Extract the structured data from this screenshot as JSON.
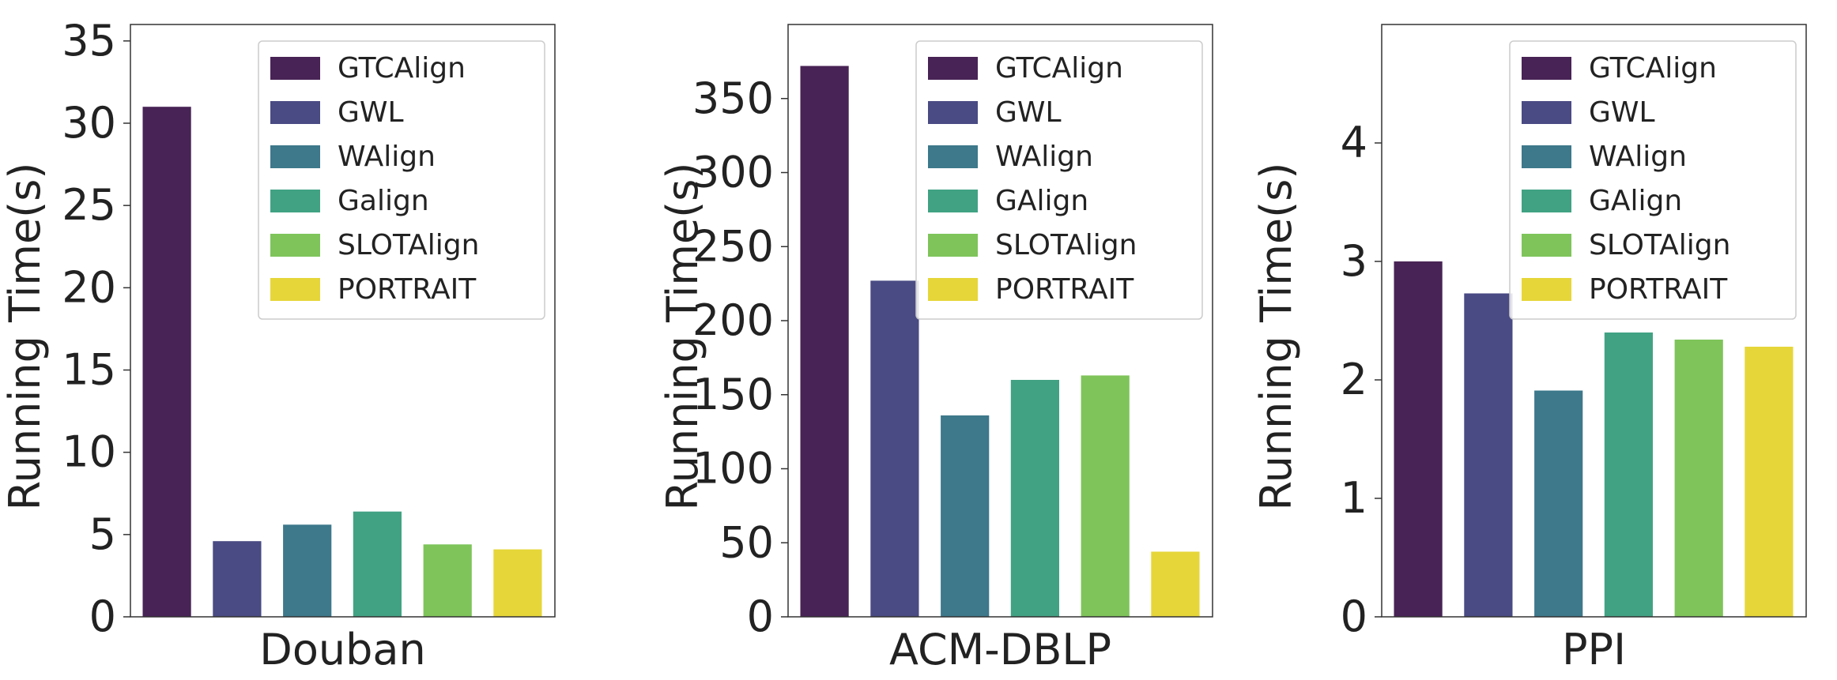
{
  "colors": {
    "GTCAlign": "#482355",
    "GWL": "#4a4a84",
    "WAlign": "#3d788b",
    "Galign": "#41a283",
    "GAlign": "#41a283",
    "SLOTAlign": "#7ec45a",
    "PORTRAIT": "#e6d639"
  },
  "chart_data": [
    {
      "type": "bar",
      "xlabel": "Douban",
      "ylabel": "Running Time(s)",
      "ylim": [
        0,
        36
      ],
      "yticks": [
        0,
        5,
        10,
        15,
        20,
        25,
        30,
        35
      ],
      "legend_position": "top-right",
      "methods": [
        "GTCAlign",
        "GWL",
        "WAlign",
        "Galign",
        "SLOTAlign",
        "PORTRAIT"
      ],
      "values": [
        31.0,
        4.6,
        5.6,
        6.4,
        4.4,
        4.1
      ]
    },
    {
      "type": "bar",
      "xlabel": "ACM-DBLP",
      "ylabel": "Running Time(s)",
      "ylim": [
        0,
        400
      ],
      "yticks": [
        0,
        50,
        100,
        150,
        200,
        250,
        300,
        350
      ],
      "legend_position": "top-right",
      "methods": [
        "GTCAlign",
        "GWL",
        "WAlign",
        "GAlign",
        "SLOTAlign",
        "PORTRAIT"
      ],
      "values": [
        372,
        227,
        136,
        160,
        163,
        44
      ]
    },
    {
      "type": "bar",
      "xlabel": "PPI",
      "ylabel": "Running Time(s)",
      "ylim": [
        0,
        5
      ],
      "yticks": [
        0,
        1,
        2,
        3,
        4
      ],
      "legend_position": "top-right",
      "methods": [
        "GTCAlign",
        "GWL",
        "WAlign",
        "GAlign",
        "SLOTAlign",
        "PORTRAIT"
      ],
      "values": [
        3.0,
        2.73,
        1.91,
        2.4,
        2.34,
        2.28
      ]
    }
  ]
}
